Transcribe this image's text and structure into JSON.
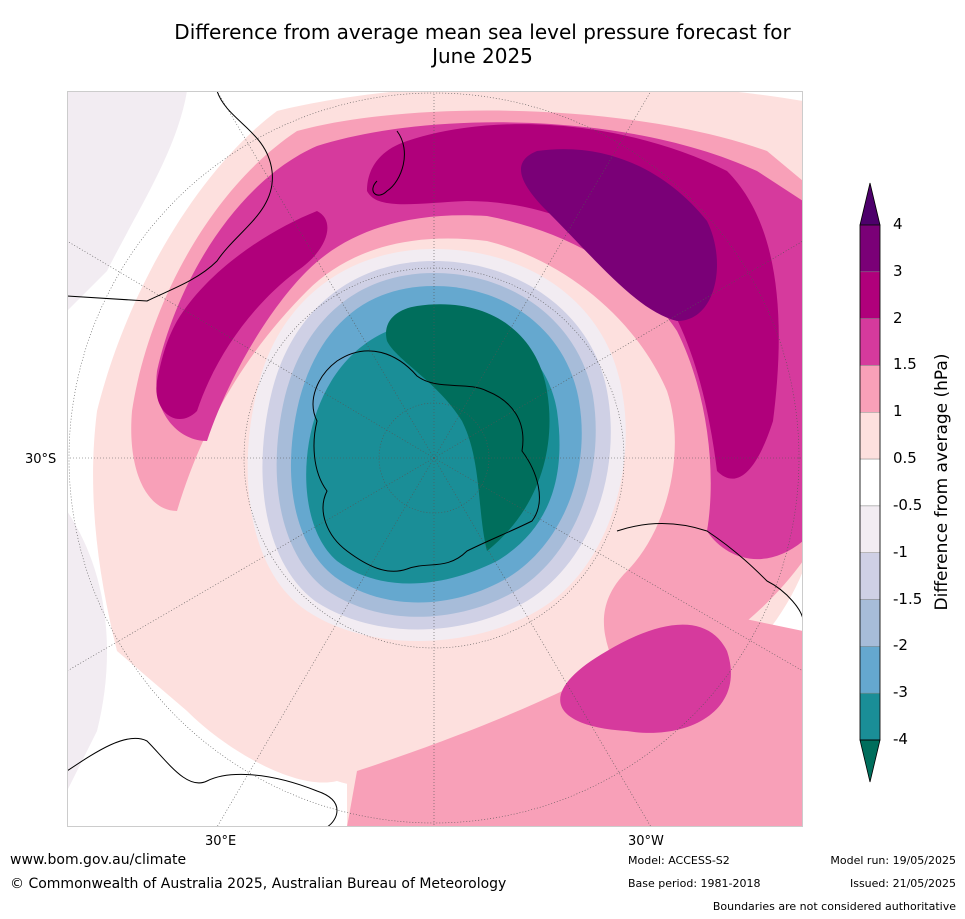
{
  "title_line1": "Difference from average mean sea level pressure forecast for",
  "title_line2": "June 2025",
  "map": {
    "projection": "south-polar-stereographic",
    "lat_label": "30°S",
    "lon_labels": [
      "30°E",
      "30°W"
    ]
  },
  "colorbar": {
    "label": "Difference from average (hPa)",
    "ticks": [
      "4",
      "3",
      "2",
      "1.5",
      "1",
      "0.5",
      "-0.5",
      "-1",
      "-1.5",
      "-2",
      "-3",
      "-4"
    ],
    "colors": [
      "#4d006b",
      "#7a0077",
      "#b0007b",
      "#d63a9d",
      "#f8a0b8",
      "#fde0de",
      "#ffffff",
      "#f2ecf2",
      "#cfd0e5",
      "#a7bcd9",
      "#65a8cf",
      "#1a8e97",
      "#006e5c"
    ]
  },
  "footer": {
    "website": "www.bom.gov.au/climate",
    "copyright": "© Commonwealth of Australia 2025, Australian Bureau of Meteorology",
    "model": "Model: ACCESS-S2",
    "base_period": "Base period: 1981-2018",
    "model_run": "Model run: 19/05/2025",
    "issued": "Issued: 21/05/2025",
    "disclaimer": "Boundaries are not considered authoritative"
  }
}
